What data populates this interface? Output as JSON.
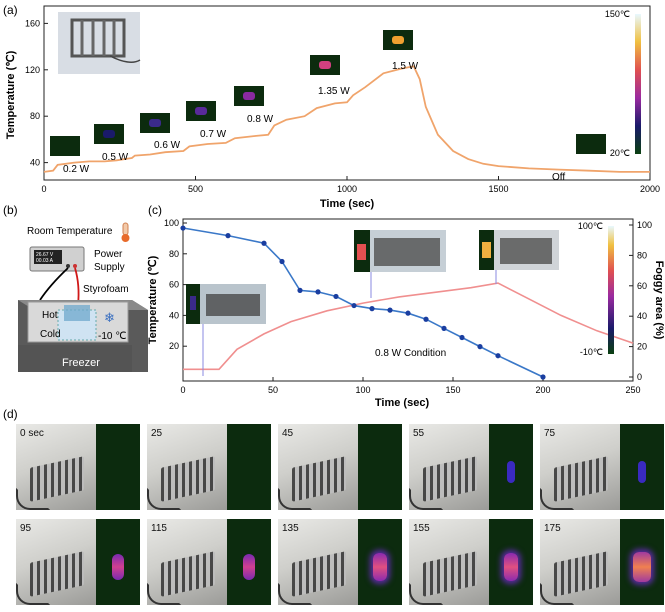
{
  "panel_labels": {
    "a": "(a)",
    "b": "(b)",
    "c": "(c)",
    "d": "(d)"
  },
  "chart_data": [
    {
      "id": "a",
      "type": "line",
      "xlabel": "Time (sec)",
      "ylabel": "Temperature (℃)",
      "xlim": [
        0,
        2000
      ],
      "ylim": [
        25,
        175
      ],
      "xticks": [
        "0",
        "500",
        "1000",
        "1500",
        "2000"
      ],
      "yticks": [
        "40",
        "80",
        "120",
        "160"
      ],
      "series_color": "#f0a46b",
      "x": [
        0,
        30,
        45,
        100,
        150,
        200,
        240,
        290,
        300,
        350,
        400,
        460,
        480,
        540,
        600,
        630,
        700,
        740,
        760,
        800,
        860,
        900,
        960,
        1000,
        1020,
        1060,
        1120,
        1180,
        1220,
        1240,
        1260,
        1300,
        1350,
        1400,
        1450,
        1500,
        1600,
        1700,
        1800,
        1900,
        2000
      ],
      "y": [
        32,
        33,
        38,
        40,
        41,
        41,
        42,
        44,
        46,
        47,
        49,
        50,
        54,
        56,
        57,
        61,
        63,
        64,
        72,
        77,
        80,
        87,
        91,
        92,
        98,
        105,
        117,
        121,
        123,
        112,
        88,
        64,
        50,
        43,
        39,
        37,
        35,
        34,
        33,
        32,
        32
      ],
      "power_labels": [
        "0.2 W",
        "0.5 W",
        "0.6 W",
        "0.7 W",
        "0.8 W",
        "1.35 W",
        "1.5 W",
        "Off"
      ],
      "colorbar": {
        "max": "150℃",
        "min": "20℃"
      }
    },
    {
      "id": "c",
      "type": "line",
      "xlabel": "Time (sec)",
      "ylabel": "Temperature (℃)",
      "ylabel2": "Foggy area (%)",
      "xlim": [
        0,
        250
      ],
      "ylim": [
        0,
        100
      ],
      "ylim2": [
        0,
        100
      ],
      "xticks": [
        "0",
        "50",
        "100",
        "150",
        "200",
        "250"
      ],
      "yticks": [
        "20",
        "40",
        "60",
        "80",
        "100"
      ],
      "yticks2": [
        "0",
        "20",
        "40",
        "60",
        "80",
        "100"
      ],
      "annotation": "0.8 W Condition",
      "colorbar": {
        "max": "100℃",
        "min": "-10℃"
      },
      "series": [
        {
          "color": "#f08f8f",
          "axis": "left",
          "x": [
            0,
            10,
            20,
            30,
            45,
            60,
            80,
            100,
            120,
            140,
            160,
            175,
            190,
            210,
            230,
            250
          ],
          "y": [
            5,
            5,
            5,
            18,
            28,
            36,
            43,
            48,
            52,
            55,
            58,
            61,
            52,
            40,
            30,
            22
          ]
        },
        {
          "color": "#3a78c8",
          "axis": "right",
          "x": [
            0,
            25,
            45,
            55,
            65,
            75,
            85,
            95,
            105,
            115,
            125,
            135,
            145,
            155,
            165,
            175,
            200
          ],
          "y": [
            98,
            93,
            88,
            76,
            57,
            56,
            53,
            47,
            45,
            44,
            42,
            38,
            32,
            26,
            20,
            14,
            0
          ]
        }
      ]
    }
  ],
  "panel_b": {
    "room_temperature": "Room Temperature",
    "power_supply_line1": "Power",
    "power_supply_line2": "Supply",
    "display_line1": "26.67 V",
    "display_line2": "00.03 A",
    "styrofoam": "Styrofoam",
    "hot": "Hot",
    "cold": "Cold",
    "temp": "-10 ℃",
    "freezer": "Freezer"
  },
  "panel_d": {
    "frames": [
      {
        "t": "0 sec",
        "heat": 0
      },
      {
        "t": "25",
        "heat": 0
      },
      {
        "t": "45",
        "heat": 1
      },
      {
        "t": "55",
        "heat": 2
      },
      {
        "t": "75",
        "heat": 2
      },
      {
        "t": "95",
        "heat": 3
      },
      {
        "t": "115",
        "heat": 3
      },
      {
        "t": "135",
        "heat": 4
      },
      {
        "t": "155",
        "heat": 4
      },
      {
        "t": "175",
        "heat": 5
      }
    ]
  }
}
